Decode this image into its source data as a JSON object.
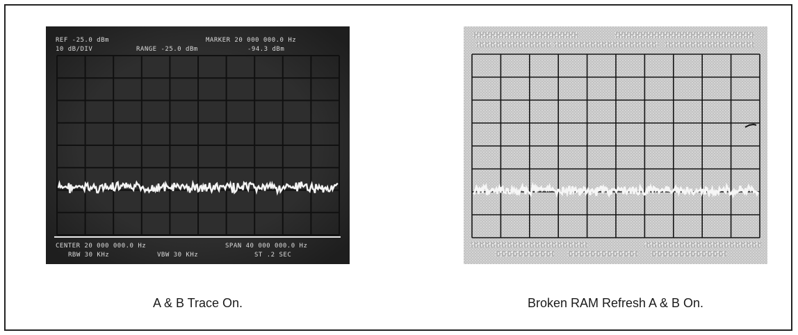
{
  "panels": [
    {
      "caption": "A & B Trace On.",
      "readout": {
        "ref": "REF -25.0 dBm",
        "marker": "MARKER 20 000 000.0 Hz",
        "scale": "10 dB/DIV",
        "range": "RANGE -25.0 dBm",
        "marker_level": "-94.3 dBm",
        "center": "CENTER 20 000 000.0 Hz",
        "span": "SPAN 40 000 000.0 Hz",
        "rbw": "RBW 30 KHz",
        "vbw": "VBW 30 KHz",
        "sweep": "ST .2 SEC"
      }
    },
    {
      "caption": "Broken RAM Refresh A & B On."
    }
  ],
  "colors": {
    "frame": "#222222",
    "screen_dark": "#2a2a2a",
    "screen_light": "#c8c8c8",
    "grid_dark": "#0d0d0d",
    "trace": "#f4f4f4"
  }
}
